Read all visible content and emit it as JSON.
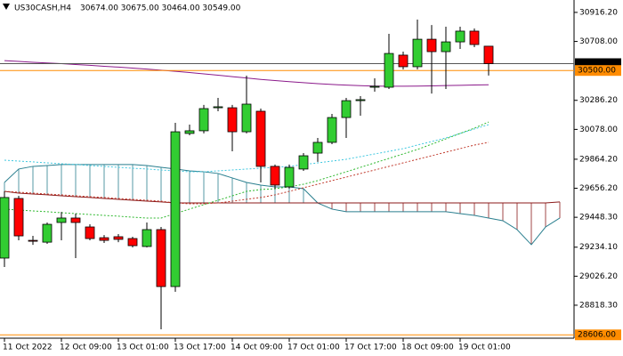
{
  "chart_data": {
    "type": "candlestick",
    "title": "US30CASH,H4",
    "ohlc_text": "30674.00 30675.00 30464.00 30549.00",
    "categories": [
      "11 Oct 2022",
      null,
      null,
      null,
      "12 Oct 09:00",
      null,
      null,
      null,
      "13 Oct 01:00",
      null,
      null,
      null,
      "13 Oct 17:00",
      null,
      null,
      null,
      "14 Oct 09:00",
      null,
      null,
      null,
      "17 Oct 01:00",
      null,
      null,
      null,
      "17 Oct 17:00",
      null,
      null,
      null,
      "18 Oct 09:00",
      null,
      null,
      null,
      "19 Oct 01:00",
      null,
      null,
      null,
      null,
      null,
      null,
      null
    ],
    "open": [
      29156,
      29583,
      29283,
      29270,
      29411,
      29443,
      29379,
      29302,
      29309,
      29296,
      29239,
      29360,
      28952,
      30049,
      30068,
      30233,
      30233,
      30061,
      30208,
      29813,
      29666,
      29794,
      29908,
      29985,
      30163,
      30284,
      30380,
      30380,
      30610,
      30527,
      30724,
      30635,
      30705,
      30782,
      30674,
      null,
      null,
      null,
      null,
      null
    ],
    "high": [
      29634,
      29602,
      29315,
      29411,
      29487,
      29475,
      29398,
      29321,
      29328,
      29309,
      29411,
      29379,
      30125,
      30112,
      30253,
      30304,
      30253,
      30463,
      30227,
      29826,
      29826,
      29908,
      30017,
      30189,
      30304,
      30316,
      30444,
      30763,
      30635,
      30865,
      30826,
      30814,
      30814,
      30801,
      30675,
      null,
      null,
      null,
      null,
      null
    ],
    "low": [
      29092,
      29283,
      29251,
      29258,
      29283,
      29156,
      29283,
      29264,
      29270,
      29232,
      29232,
      28646,
      28914,
      30036,
      30049,
      30208,
      29921,
      30049,
      29698,
      29653,
      29653,
      29781,
      29845,
      29972,
      30017,
      30176,
      30348,
      30367,
      30508,
      30508,
      30335,
      30367,
      30654,
      30667,
      30464,
      null,
      null,
      null,
      null,
      null
    ],
    "close": [
      29590,
      29315,
      29277,
      29398,
      29443,
      29411,
      29296,
      29283,
      29290,
      29245,
      29360,
      28952,
      30061,
      30068,
      30227,
      30240,
      30061,
      30259,
      29813,
      29679,
      29806,
      29889,
      29985,
      30163,
      30284,
      30291,
      30387,
      30622,
      30527,
      30724,
      30635,
      30705,
      30782,
      30686,
      30549,
      null,
      null,
      null,
      null,
      null
    ],
    "up_color": "#32cd32",
    "down_color": "#ff0000",
    "lines": [
      {
        "color": "#8b1a8b",
        "dash": false,
        "values": [
          30571,
          30565,
          30559,
          30554,
          30549,
          30543,
          30537,
          30530,
          30524,
          30517,
          30510,
          30502,
          30494,
          30485,
          30476,
          30466,
          30456,
          30446,
          30436,
          30428,
          30420,
          30413,
          30406,
          30400,
          30395,
          30391,
          30388,
          30387,
          30387,
          30388,
          30390,
          30392,
          30394,
          30396,
          30398,
          null,
          null,
          null,
          null,
          null
        ]
      },
      {
        "color": "#40c8e0",
        "dash": true,
        "values": [
          29857,
          29851,
          29845,
          29838,
          29832,
          29826,
          29819,
          29813,
          29806,
          29800,
          29794,
          29787,
          29781,
          29774,
          29774,
          29781,
          29787,
          29794,
          29800,
          29806,
          29813,
          29826,
          29838,
          29851,
          29864,
          29883,
          29902,
          29921,
          29940,
          29966,
          29991,
          30017,
          30049,
          30081,
          30112,
          null,
          null,
          null,
          null,
          null
        ]
      },
      {
        "color": "#c0392b",
        "dash": true,
        "values": [
          29634,
          29628,
          29621,
          29615,
          29609,
          29602,
          29596,
          29590,
          29583,
          29577,
          29570,
          29564,
          29551,
          29545,
          29545,
          29551,
          29564,
          29577,
          29590,
          29609,
          29634,
          29660,
          29685,
          29711,
          29736,
          29762,
          29787,
          29813,
          29838,
          29864,
          29889,
          29915,
          29940,
          29966,
          29985,
          null,
          null,
          null,
          null,
          null
        ]
      },
      {
        "color": "#2eb82e",
        "dash": true,
        "values": [
          29507,
          29500,
          29494,
          29488,
          29481,
          29475,
          29468,
          29462,
          29456,
          29449,
          29443,
          29443,
          29475,
          29507,
          29539,
          29570,
          29602,
          29634,
          29647,
          29653,
          29666,
          29685,
          29711,
          29743,
          29774,
          29806,
          29838,
          29870,
          29902,
          29934,
          29972,
          30010,
          30049,
          30087,
          30131,
          null,
          null,
          null,
          null,
          null
        ]
      }
    ],
    "cloud": {
      "span_a": {
        "color": "#2a7f8f",
        "values": [
          29698,
          29794,
          29813,
          29819,
          29826,
          29826,
          29826,
          29826,
          29826,
          29826,
          29819,
          29806,
          29794,
          29781,
          29774,
          29762,
          29730,
          29698,
          29679,
          29666,
          29666,
          29653,
          29551,
          29507,
          29488,
          29488,
          29488,
          29488,
          29488,
          29488,
          29488,
          29488,
          29475,
          29462,
          29443,
          29424,
          29360,
          29252,
          29379,
          29443
        ]
      },
      "span_b": {
        "color": "#8b1a1a",
        "values": [
          29634,
          29621,
          29615,
          29609,
          29602,
          29596,
          29590,
          29583,
          29577,
          29570,
          29564,
          29558,
          29551,
          29551,
          29551,
          29551,
          29551,
          29551,
          29551,
          29551,
          29551,
          29551,
          29551,
          29551,
          29551,
          29551,
          29551,
          29551,
          29551,
          29551,
          29551,
          29551,
          29551,
          29551,
          29551,
          29551,
          29551,
          29551,
          29551,
          29558
        ]
      }
    },
    "hlines": [
      {
        "value": 30549,
        "label": "30549.00",
        "color": "#555555",
        "label_color": "#000000"
      },
      {
        "value": 30500,
        "label": "30500.00",
        "color": "#ff8c00",
        "label_color": "#ff8c00"
      },
      {
        "value": 28606,
        "label": "28606.00",
        "color": "#ff8c00",
        "label_color": "#ff8c00"
      }
    ],
    "ylim": [
      28582,
      31005
    ],
    "yticks": [
      {
        "value": 30916.2,
        "label": "30916.20"
      },
      {
        "value": 30708,
        "label": "30708.00"
      },
      {
        "value": 30286.2,
        "label": "30286.20"
      },
      {
        "value": 30078,
        "label": "30078.00"
      },
      {
        "value": 29864.2,
        "label": "29864.20"
      },
      {
        "value": 29656.2,
        "label": "29656.20"
      },
      {
        "value": 29448.3,
        "label": "29448.30"
      },
      {
        "value": 29234.1,
        "label": "29234.10"
      },
      {
        "value": 29026.2,
        "label": "29026.20"
      },
      {
        "value": 28818.3,
        "label": "28818.30"
      }
    ]
  }
}
